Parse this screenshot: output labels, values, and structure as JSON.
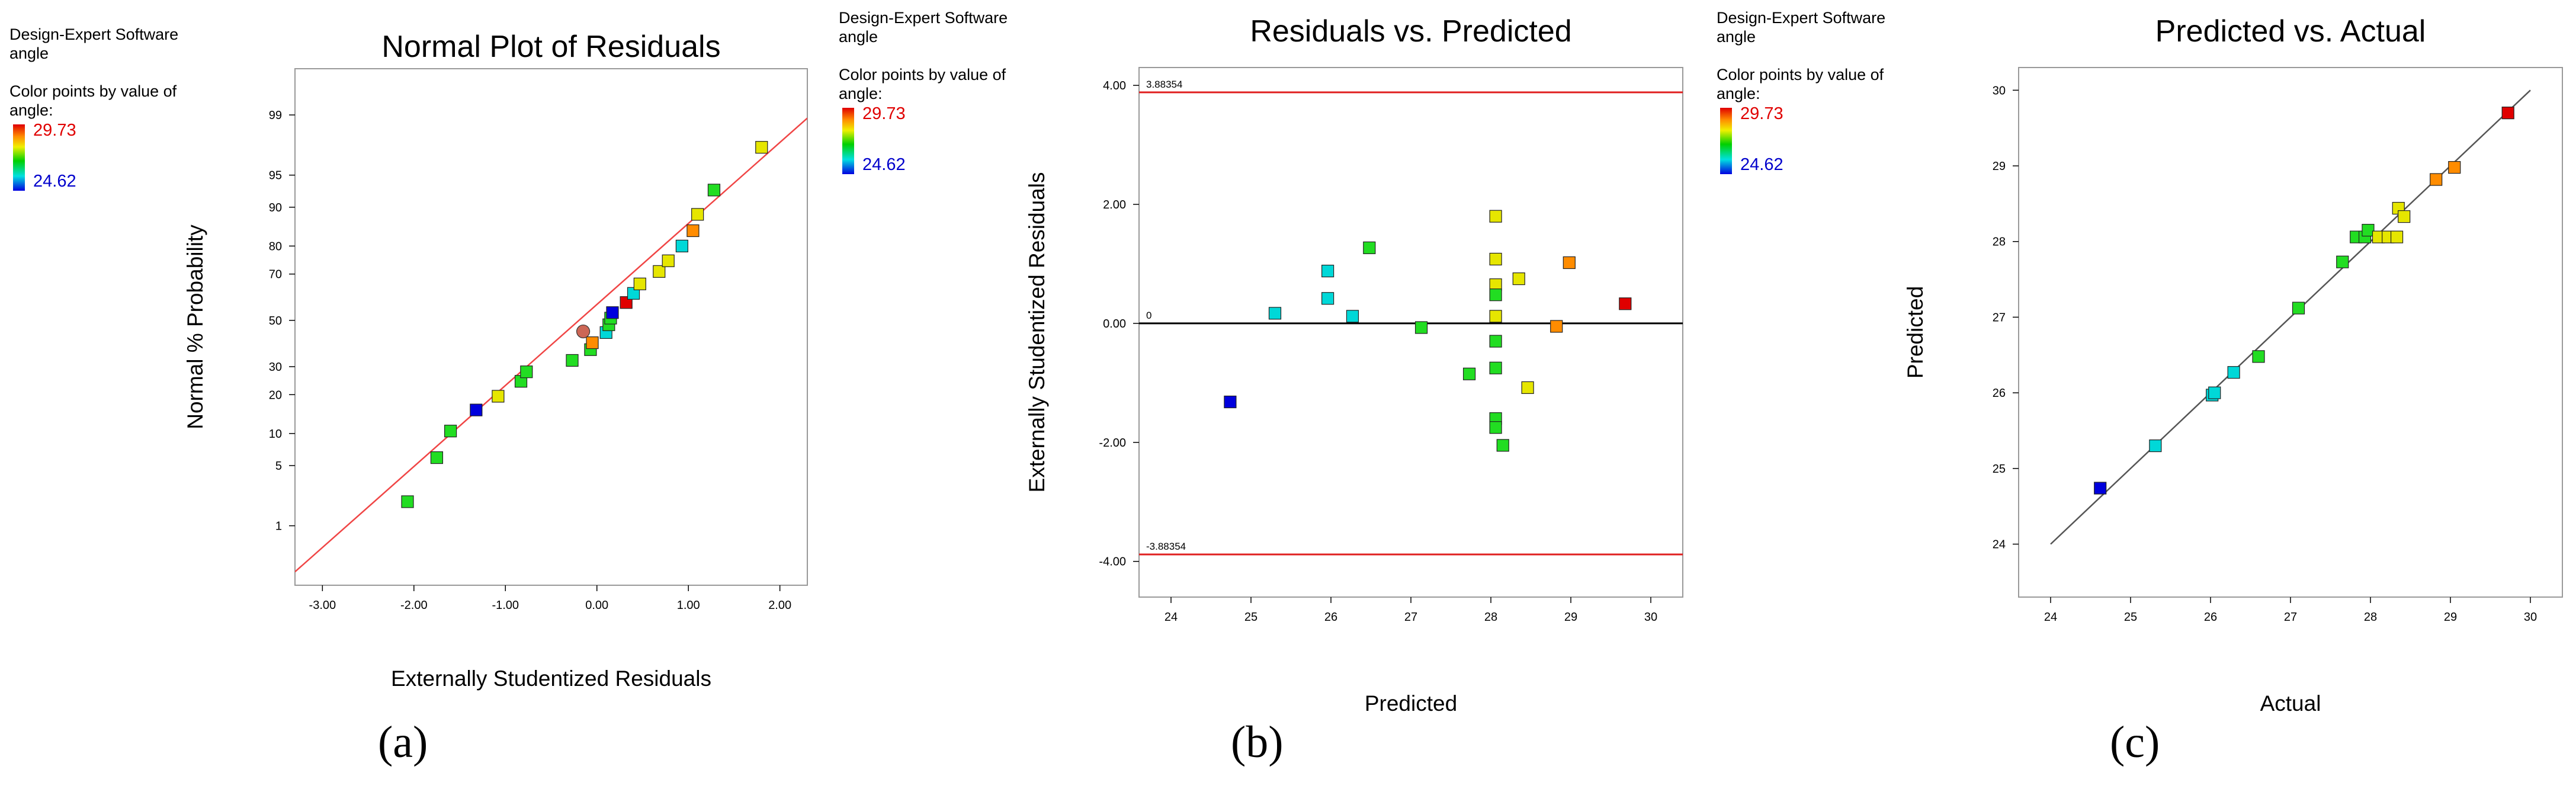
{
  "legends": [
    {
      "software": "Design-Expert Software",
      "factor": "angle",
      "color_by": "Color points by value of angle:",
      "high": "29.73",
      "low": "24.62"
    },
    {
      "software": "Design-Expert Software",
      "factor": "angle",
      "color_by": "Color points by value of angle:",
      "high": "29.73",
      "low": "24.62"
    },
    {
      "software": "Design-Expert Software",
      "factor": "angle",
      "color_by": "Color points by value of angle:",
      "high": "29.73",
      "low": "24.62"
    }
  ],
  "panel_labels": [
    "(a)",
    "(b)",
    "(c)"
  ],
  "colors": {
    "red": "#e00000",
    "orange": "#ff8c00",
    "yellow": "#e6e600",
    "green": "#22dd22",
    "cyan": "#00d8d8",
    "blue": "#0000dd",
    "brown": "#cc6655",
    "line": "#f04545"
  },
  "chart_data": [
    {
      "type": "scatter",
      "title": "Normal Plot of Residuals",
      "xlabel": "Externally Studentized Residuals",
      "ylabel": "Normal % Probability",
      "xlim": [
        -3.3,
        2.3
      ],
      "x_ticks": [
        -3,
        -2,
        -1,
        0,
        1,
        2
      ],
      "x_tick_labels": [
        "-3.00",
        "-2.00",
        "-1.00",
        "0.00",
        "1.00",
        "2.00"
      ],
      "y_scale": "normal-probability",
      "y_ticks": [
        1,
        5,
        10,
        20,
        30,
        50,
        70,
        80,
        90,
        95,
        99
      ],
      "y_tick_labels": [
        "1",
        "5",
        "10",
        "20",
        "30",
        "50",
        "70",
        "80",
        "90",
        "95",
        "99"
      ],
      "reference_line": {
        "from": [
          -3.3,
          0.22
        ],
        "to": [
          2.3,
          98.9
        ]
      },
      "points": [
        {
          "x": -2.07,
          "y": 2.0,
          "color": "green"
        },
        {
          "x": -1.75,
          "y": 6.0,
          "color": "green"
        },
        {
          "x": -1.6,
          "y": 10.5,
          "color": "green"
        },
        {
          "x": -1.32,
          "y": 15.5,
          "color": "blue"
        },
        {
          "x": -1.08,
          "y": 19.5,
          "color": "yellow"
        },
        {
          "x": -0.83,
          "y": 24.5,
          "color": "green"
        },
        {
          "x": -0.77,
          "y": 28.0,
          "color": "green"
        },
        {
          "x": -0.27,
          "y": 32.5,
          "color": "green"
        },
        {
          "x": -0.07,
          "y": 37.0,
          "color": "green"
        },
        {
          "x": -0.05,
          "y": 40.0,
          "color": "orange"
        },
        {
          "x": -0.15,
          "y": 45.0,
          "color": "brown",
          "shape": "circle"
        },
        {
          "x": 0.1,
          "y": 44.5,
          "color": "cyan"
        },
        {
          "x": 0.13,
          "y": 48.0,
          "color": "green"
        },
        {
          "x": 0.15,
          "y": 51.0,
          "color": "green"
        },
        {
          "x": 0.17,
          "y": 53.5,
          "color": "blue"
        },
        {
          "x": 0.32,
          "y": 58.0,
          "color": "red"
        },
        {
          "x": 0.4,
          "y": 62.0,
          "color": "cyan"
        },
        {
          "x": 0.47,
          "y": 66.0,
          "color": "yellow"
        },
        {
          "x": 0.68,
          "y": 71.0,
          "color": "yellow"
        },
        {
          "x": 0.78,
          "y": 75.0,
          "color": "yellow"
        },
        {
          "x": 0.93,
          "y": 80.0,
          "color": "cyan"
        },
        {
          "x": 1.05,
          "y": 84.5,
          "color": "orange"
        },
        {
          "x": 1.1,
          "y": 88.5,
          "color": "yellow"
        },
        {
          "x": 1.28,
          "y": 93.0,
          "color": "green"
        },
        {
          "x": 1.8,
          "y": 97.5,
          "color": "yellow"
        }
      ]
    },
    {
      "type": "scatter",
      "title": "Residuals vs. Predicted",
      "xlabel": "Predicted",
      "ylabel": "Externally Studentized Residuals",
      "xlim": [
        23.6,
        30.4
      ],
      "ylim": [
        -4.6,
        4.3
      ],
      "x_ticks": [
        24,
        25,
        26,
        27,
        28,
        29,
        30
      ],
      "x_tick_labels": [
        "24",
        "25",
        "26",
        "27",
        "28",
        "29",
        "30"
      ],
      "y_ticks": [
        -4,
        -2,
        0,
        2,
        4
      ],
      "y_tick_labels": [
        "-4.00",
        "-2.00",
        "0.00",
        "2.00",
        "4.00"
      ],
      "hlines": [
        {
          "y": 3.88354,
          "label": "3.88354",
          "color": "red"
        },
        {
          "y": 0,
          "label": "0",
          "color": "black"
        },
        {
          "y": -3.88354,
          "label": "-3.88354",
          "color": "red"
        }
      ],
      "points": [
        {
          "x": 24.74,
          "y": -1.32,
          "color": "blue"
        },
        {
          "x": 25.3,
          "y": 0.17,
          "color": "cyan"
        },
        {
          "x": 25.96,
          "y": 0.88,
          "color": "cyan"
        },
        {
          "x": 25.96,
          "y": 0.42,
          "color": "cyan"
        },
        {
          "x": 26.27,
          "y": 0.12,
          "color": "cyan"
        },
        {
          "x": 26.48,
          "y": 1.27,
          "color": "green"
        },
        {
          "x": 27.13,
          "y": -0.07,
          "color": "green"
        },
        {
          "x": 27.73,
          "y": -0.85,
          "color": "green"
        },
        {
          "x": 28.06,
          "y": 1.8,
          "color": "yellow"
        },
        {
          "x": 28.06,
          "y": 1.08,
          "color": "yellow"
        },
        {
          "x": 28.06,
          "y": 0.65,
          "color": "yellow"
        },
        {
          "x": 28.06,
          "y": 0.48,
          "color": "green"
        },
        {
          "x": 28.06,
          "y": 0.12,
          "color": "yellow"
        },
        {
          "x": 28.06,
          "y": -0.3,
          "color": "green"
        },
        {
          "x": 28.06,
          "y": -0.75,
          "color": "green"
        },
        {
          "x": 28.06,
          "y": -1.6,
          "color": "green"
        },
        {
          "x": 28.06,
          "y": -1.75,
          "color": "green"
        },
        {
          "x": 28.15,
          "y": -2.05,
          "color": "green"
        },
        {
          "x": 28.35,
          "y": 0.75,
          "color": "yellow"
        },
        {
          "x": 28.46,
          "y": -1.08,
          "color": "yellow"
        },
        {
          "x": 28.82,
          "y": -0.05,
          "color": "orange"
        },
        {
          "x": 28.98,
          "y": 1.02,
          "color": "orange"
        },
        {
          "x": 29.68,
          "y": 0.33,
          "color": "red"
        }
      ]
    },
    {
      "type": "scatter",
      "title": "Predicted vs. Actual",
      "xlabel": "Actual",
      "ylabel": "Predicted",
      "xlim": [
        23.6,
        30.4
      ],
      "ylim": [
        23.3,
        30.3
      ],
      "x_ticks": [
        24,
        25,
        26,
        27,
        28,
        29,
        30
      ],
      "x_tick_labels": [
        "24",
        "25",
        "26",
        "27",
        "28",
        "29",
        "30"
      ],
      "y_ticks": [
        24,
        25,
        26,
        27,
        28,
        29,
        30
      ],
      "y_tick_labels": [
        "24",
        "25",
        "26",
        "27",
        "28",
        "29",
        "30"
      ],
      "reference_line": {
        "from": [
          24,
          24
        ],
        "to": [
          30,
          30
        ]
      },
      "points": [
        {
          "x": 24.62,
          "y": 24.74,
          "color": "blue"
        },
        {
          "x": 25.31,
          "y": 25.3,
          "color": "cyan"
        },
        {
          "x": 26.02,
          "y": 25.97,
          "color": "cyan"
        },
        {
          "x": 26.05,
          "y": 26.0,
          "color": "cyan"
        },
        {
          "x": 26.29,
          "y": 26.27,
          "color": "cyan"
        },
        {
          "x": 26.6,
          "y": 26.48,
          "color": "green"
        },
        {
          "x": 27.1,
          "y": 27.12,
          "color": "green"
        },
        {
          "x": 27.65,
          "y": 27.73,
          "color": "green"
        },
        {
          "x": 27.82,
          "y": 28.06,
          "color": "green"
        },
        {
          "x": 27.93,
          "y": 28.06,
          "color": "green"
        },
        {
          "x": 27.97,
          "y": 28.15,
          "color": "green"
        },
        {
          "x": 28.1,
          "y": 28.06,
          "color": "yellow"
        },
        {
          "x": 28.22,
          "y": 28.06,
          "color": "yellow"
        },
        {
          "x": 28.33,
          "y": 28.06,
          "color": "yellow"
        },
        {
          "x": 28.35,
          "y": 28.44,
          "color": "yellow"
        },
        {
          "x": 28.42,
          "y": 28.33,
          "color": "yellow"
        },
        {
          "x": 28.82,
          "y": 28.82,
          "color": "orange"
        },
        {
          "x": 29.05,
          "y": 28.98,
          "color": "orange"
        },
        {
          "x": 29.72,
          "y": 29.7,
          "color": "red"
        }
      ]
    }
  ]
}
